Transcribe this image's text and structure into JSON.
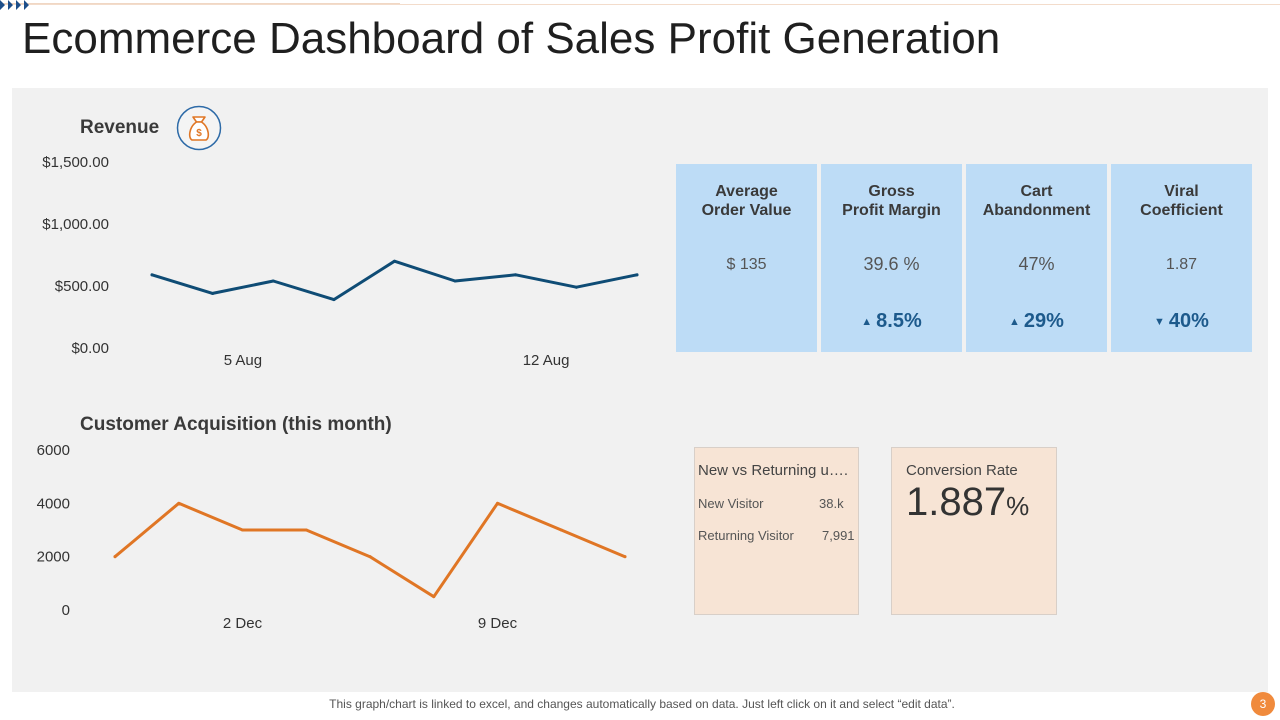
{
  "title": "Ecommerce Dashboard of Sales Profit Generation",
  "colors": {
    "revenue_line": "#0f4c75",
    "acquisition_line": "#e07625",
    "kpi_bg": "#bddcf6",
    "card_bg": "#f7e4d5",
    "accent": "#f08a3c"
  },
  "revenue": {
    "title": "Revenue",
    "icon": "money-bag-icon"
  },
  "acquisition": {
    "title": "Customer Acquisition (this month)"
  },
  "kpis": [
    {
      "label_line1": "Average",
      "label_line2": "Order Value",
      "value": "$ 135",
      "change": "",
      "direction": ""
    },
    {
      "label_line1": "Gross",
      "label_line2": "Profit Margin",
      "value": "39.6 %",
      "change": "8.5%",
      "direction": "up"
    },
    {
      "label_line1": "Cart",
      "label_line2": "Abandonment",
      "value": "47%",
      "change": "29%",
      "direction": "up"
    },
    {
      "label_line1": "Viral",
      "label_line2": "Coefficient",
      "value": "1.87",
      "change": "40%",
      "direction": "down"
    }
  ],
  "visitors": {
    "title": "New vs Returning u….",
    "rows": [
      {
        "label": "New Visitor",
        "value": "38.k"
      },
      {
        "label": "Returning Visitor",
        "value": "7,991"
      }
    ]
  },
  "conversion": {
    "label": "Conversion Rate",
    "value": "1.887",
    "unit": "%"
  },
  "footnote": "This graph/chart is linked to excel,  and changes automatically based on data. Just left click on it and select “edit data”.",
  "page_number": "3",
  "chart_data": [
    {
      "type": "line",
      "title": "Revenue",
      "x": [
        1,
        2,
        3,
        4,
        5,
        6,
        7,
        8,
        9
      ],
      "values": [
        590,
        440,
        540,
        390,
        700,
        540,
        590,
        490,
        590
      ],
      "x_tick_positions": [
        2.5,
        7.5
      ],
      "x_tick_labels": [
        "5  Aug",
        "12 Aug"
      ],
      "ylim": [
        0,
        1500
      ],
      "y_ticks": [
        0,
        500,
        1000,
        1500
      ],
      "y_tick_labels": [
        "$0.00",
        "$500.00",
        "$1,000.00",
        "$1,500.00"
      ],
      "grid": false
    },
    {
      "type": "line",
      "title": "Customer Acquisition (this month)",
      "x": [
        1,
        2,
        3,
        4,
        5,
        6,
        7,
        8,
        9
      ],
      "values": [
        2000,
        4000,
        3000,
        3000,
        2000,
        500,
        4000,
        3000,
        2000
      ],
      "x_tick_positions": [
        3,
        7
      ],
      "x_tick_labels": [
        "2 Dec",
        "9 Dec"
      ],
      "ylim": [
        0,
        6000
      ],
      "y_ticks": [
        0,
        2000,
        4000,
        6000
      ],
      "y_tick_labels": [
        "0",
        "2000",
        "4000",
        "6000"
      ],
      "grid": false
    }
  ]
}
